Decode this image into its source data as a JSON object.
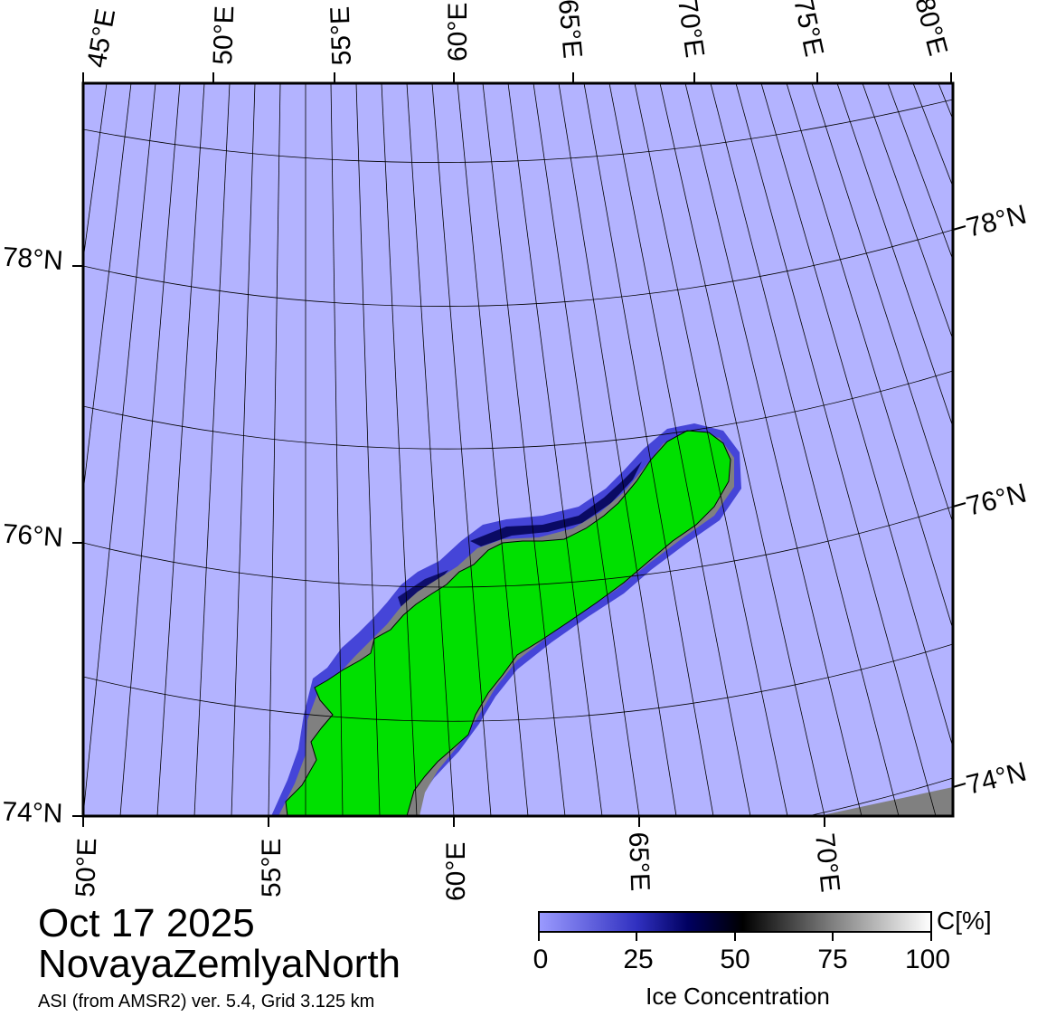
{
  "header": {
    "date": "Oct 17 2025",
    "region": "NovayaZemlyaNorth",
    "product": "ASI (from AMSR2) ver. 5.4,  Grid 3.125 km"
  },
  "map": {
    "top_lon_labels": [
      "45°E",
      "50°E",
      "55°E",
      "60°E",
      "65°E",
      "70°E",
      "75°E",
      "80°E"
    ],
    "bottom_lon_labels": [
      "50°E",
      "55°E",
      "60°E",
      "65°E",
      "70°E"
    ],
    "left_lat_labels": [
      "78°N",
      "76°N",
      "74°N"
    ],
    "right_lat_labels": [
      "78°N",
      "76°N",
      "74°N"
    ],
    "colors": {
      "open_water": "#b3b3ff",
      "land": "#00e000",
      "coast_mask": "#808080",
      "ice_edge": "#5050e0"
    }
  },
  "colorbar": {
    "unit_label": "C[%]",
    "caption": "Ice Concentration",
    "ticks": [
      "0",
      "25",
      "50",
      "75",
      "100"
    ],
    "gradient_stops": [
      "#9b9bff",
      "#4040d0",
      "#000060",
      "#000000",
      "#808080",
      "#ffffff"
    ]
  }
}
